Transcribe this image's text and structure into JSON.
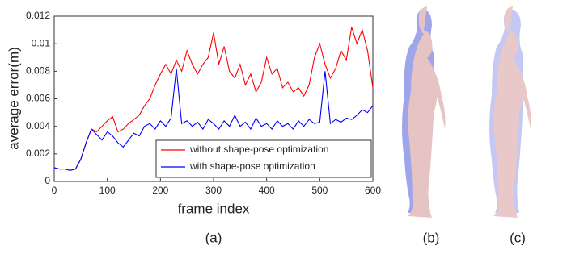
{
  "chart_data": {
    "type": "line",
    "xlabel": "frame index",
    "ylabel": "average error(m)",
    "x": [
      0,
      10,
      20,
      30,
      40,
      50,
      60,
      70,
      80,
      90,
      100,
      110,
      120,
      130,
      140,
      150,
      160,
      170,
      180,
      190,
      200,
      210,
      220,
      230,
      240,
      250,
      260,
      270,
      280,
      290,
      300,
      310,
      320,
      330,
      340,
      350,
      360,
      370,
      380,
      390,
      400,
      410,
      420,
      430,
      440,
      450,
      460,
      470,
      480,
      490,
      500,
      510,
      520,
      530,
      540,
      550,
      560,
      570,
      580,
      590,
      600
    ],
    "series": [
      {
        "name": "without shape-pose optimization",
        "color": "#ff0000",
        "values": [
          0.001,
          0.0009,
          0.0009,
          0.0008,
          0.0009,
          0.0016,
          0.0028,
          0.0038,
          0.0036,
          0.004,
          0.0044,
          0.0047,
          0.0036,
          0.0038,
          0.0042,
          0.0045,
          0.0048,
          0.0055,
          0.006,
          0.007,
          0.0078,
          0.0085,
          0.0078,
          0.0088,
          0.008,
          0.0095,
          0.0085,
          0.0078,
          0.0085,
          0.009,
          0.0108,
          0.0085,
          0.0098,
          0.008,
          0.0075,
          0.0085,
          0.007,
          0.0078,
          0.0065,
          0.0072,
          0.009,
          0.0078,
          0.0082,
          0.0068,
          0.0072,
          0.0065,
          0.0068,
          0.0062,
          0.007,
          0.009,
          0.01,
          0.0085,
          0.0075,
          0.0082,
          0.0095,
          0.0088,
          0.0112,
          0.01,
          0.011,
          0.0095,
          0.0068
        ]
      },
      {
        "name": "with shape-pose optimization",
        "color": "#0000ff",
        "values": [
          0.001,
          0.0009,
          0.0009,
          0.0008,
          0.0009,
          0.0016,
          0.0028,
          0.0038,
          0.0034,
          0.003,
          0.0036,
          0.0033,
          0.0028,
          0.0025,
          0.003,
          0.0035,
          0.0033,
          0.004,
          0.0042,
          0.0038,
          0.0044,
          0.004,
          0.0046,
          0.0082,
          0.0042,
          0.0044,
          0.004,
          0.0043,
          0.0038,
          0.0045,
          0.0042,
          0.0038,
          0.0044,
          0.004,
          0.0048,
          0.004,
          0.0043,
          0.0038,
          0.0046,
          0.004,
          0.0042,
          0.0038,
          0.0044,
          0.004,
          0.0042,
          0.0038,
          0.0044,
          0.004,
          0.0045,
          0.0042,
          0.0043,
          0.008,
          0.0042,
          0.0045,
          0.0043,
          0.0046,
          0.0045,
          0.0048,
          0.0052,
          0.005,
          0.0055
        ]
      }
    ],
    "xlim": [
      0,
      600
    ],
    "xticks": [
      0,
      100,
      200,
      300,
      400,
      500,
      600
    ],
    "ylim": [
      0,
      0.012
    ],
    "yticks": [
      0,
      0.002,
      0.004,
      0.006,
      0.008,
      0.01,
      0.012
    ],
    "legend": "lower right"
  },
  "captions": [
    "(a)",
    "(b)",
    "(c)"
  ]
}
